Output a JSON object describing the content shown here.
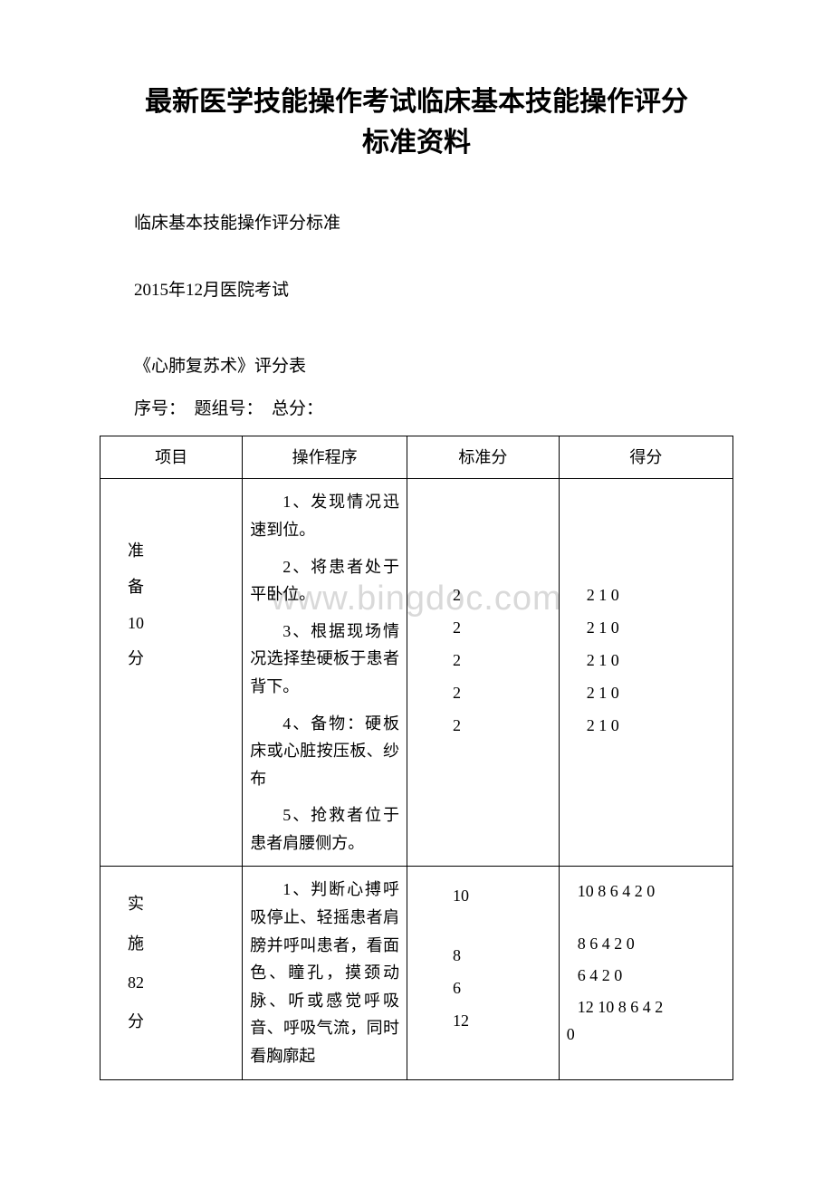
{
  "title_line1": "最新医学技能操作考试临床基本技能操作评分",
  "title_line2": "标准资料",
  "subtitle": "临床基本技能操作评分标准",
  "exam_date": "2015年12月医院考试",
  "form_title": "《心肺复苏术》评分表",
  "form_meta": "序号：　题组号：　总分：",
  "watermark": "www.bingdoc.com",
  "table": {
    "headers": [
      "项目",
      "操作程序",
      "标准分",
      "得分"
    ],
    "rows": [
      {
        "project": [
          "准",
          "备",
          "10",
          "分"
        ],
        "procedures": [
          "1、发现情况迅速到位。",
          "2、将患者处于平卧位。",
          "3、根据现场情况选择垫硬板于患者背下。",
          "4、备物：硬板床或心脏按压板、纱布",
          "5、抢救者位于患者肩腰侧方。"
        ],
        "standard_scores": [
          "2",
          "2",
          "2",
          "2",
          "2"
        ],
        "obtained_scores": [
          "2 1 0",
          "2 1 0",
          "2 1 0",
          "2 1 0",
          "2 1 0"
        ]
      },
      {
        "project": [
          "实",
          "施",
          "82",
          "分"
        ],
        "procedures": [
          "1、判断心搏呼吸停止、轻摇患者肩膀并呼叫患者，看面色、瞳孔，摸颈动脉、听或感觉呼吸音、呼吸气流，同时看胸廓起"
        ],
        "standard_scores": [
          "10",
          "",
          "8",
          "6",
          "12"
        ],
        "obtained_scores": [
          "10 8 6 4 2 0",
          "",
          "8 6 4 2 0",
          "6 4 2 0",
          "12 10 8 6 4 2",
          "0"
        ]
      }
    ]
  },
  "colors": {
    "background": "#ffffff",
    "text": "#000000",
    "border": "#000000",
    "watermark": "#d9d9d9"
  },
  "typography": {
    "title_fontsize": 30,
    "body_fontsize": 19,
    "table_fontsize": 18,
    "font_family": "SimSun"
  }
}
